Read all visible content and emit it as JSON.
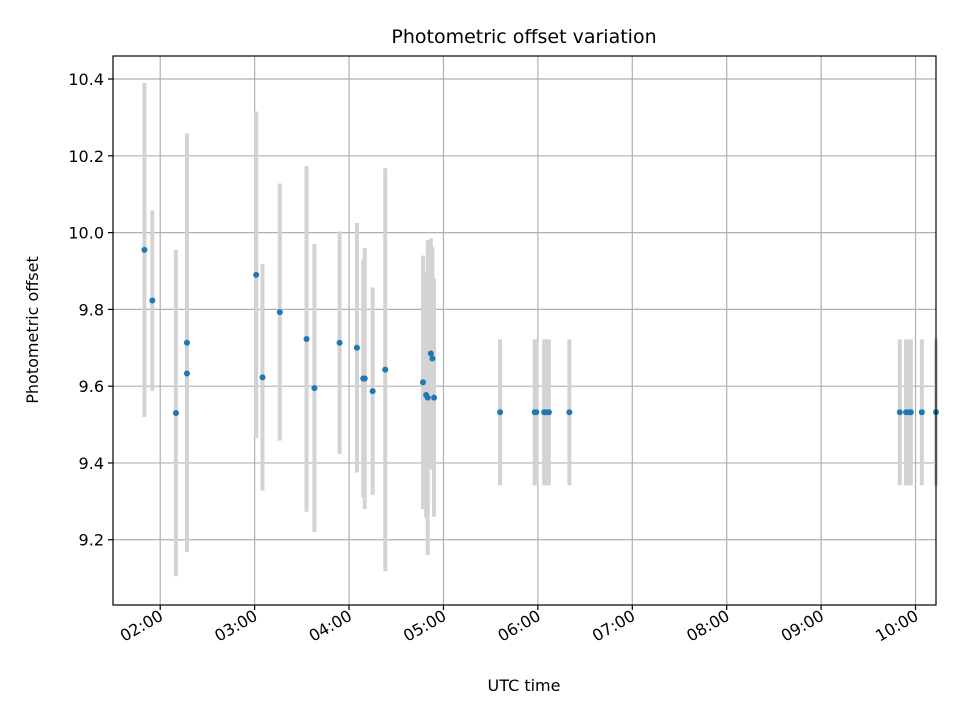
{
  "chart_data": {
    "type": "scatter",
    "title": "Photometric offset variation",
    "xlabel": "UTC time",
    "ylabel": "Photometric offset",
    "grid": true,
    "x_ticks": [
      "02:00",
      "03:00",
      "04:00",
      "05:00",
      "06:00",
      "07:00",
      "08:00",
      "09:00",
      "10:00"
    ],
    "y_ticks": [
      "9.2",
      "9.4",
      "9.6",
      "9.8",
      "10.0",
      "10.2",
      "10.4"
    ],
    "xlim": [
      "01:30",
      "10:13"
    ],
    "ylim": [
      9.03,
      10.46
    ],
    "point_color": "#1f77b4",
    "errorbar_color": "#d3d3d3",
    "series": [
      {
        "x": [
          "01:50",
          "01:55",
          "02:10",
          "02:17",
          "02:17",
          "03:01",
          "03:05",
          "03:16",
          "03:33",
          "03:38",
          "03:54",
          "04:05",
          "04:09",
          "04:10",
          "04:15",
          "04:23",
          "04:47",
          "04:49",
          "04:50",
          "04:52",
          "04:53",
          "04:54",
          "05:36",
          "05:58",
          "05:59",
          "06:04",
          "06:05",
          "06:07",
          "06:20",
          "09:50",
          "09:54",
          "09:56",
          "09:57",
          "10:04",
          "10:13"
        ],
        "y": [
          9.955,
          9.823,
          9.53,
          9.633,
          9.713,
          9.89,
          9.623,
          9.793,
          9.723,
          9.595,
          9.713,
          9.7,
          9.62,
          9.62,
          9.587,
          9.643,
          9.61,
          9.577,
          9.57,
          9.685,
          9.672,
          9.57,
          9.532,
          9.532,
          9.532,
          9.532,
          9.532,
          9.532,
          9.532,
          9.532,
          9.532,
          9.532,
          9.532,
          9.532,
          9.532
        ],
        "err": [
          0.435,
          0.235,
          0.425,
          0.315,
          0.545,
          0.425,
          0.295,
          0.335,
          0.45,
          0.375,
          0.29,
          0.325,
          0.31,
          0.34,
          0.27,
          0.525,
          0.33,
          0.32,
          0.41,
          0.3,
          0.29,
          0.31,
          0.19,
          0.19,
          0.19,
          0.19,
          0.19,
          0.19,
          0.19,
          0.19,
          0.19,
          0.19,
          0.19,
          0.19,
          0.19
        ]
      }
    ]
  }
}
